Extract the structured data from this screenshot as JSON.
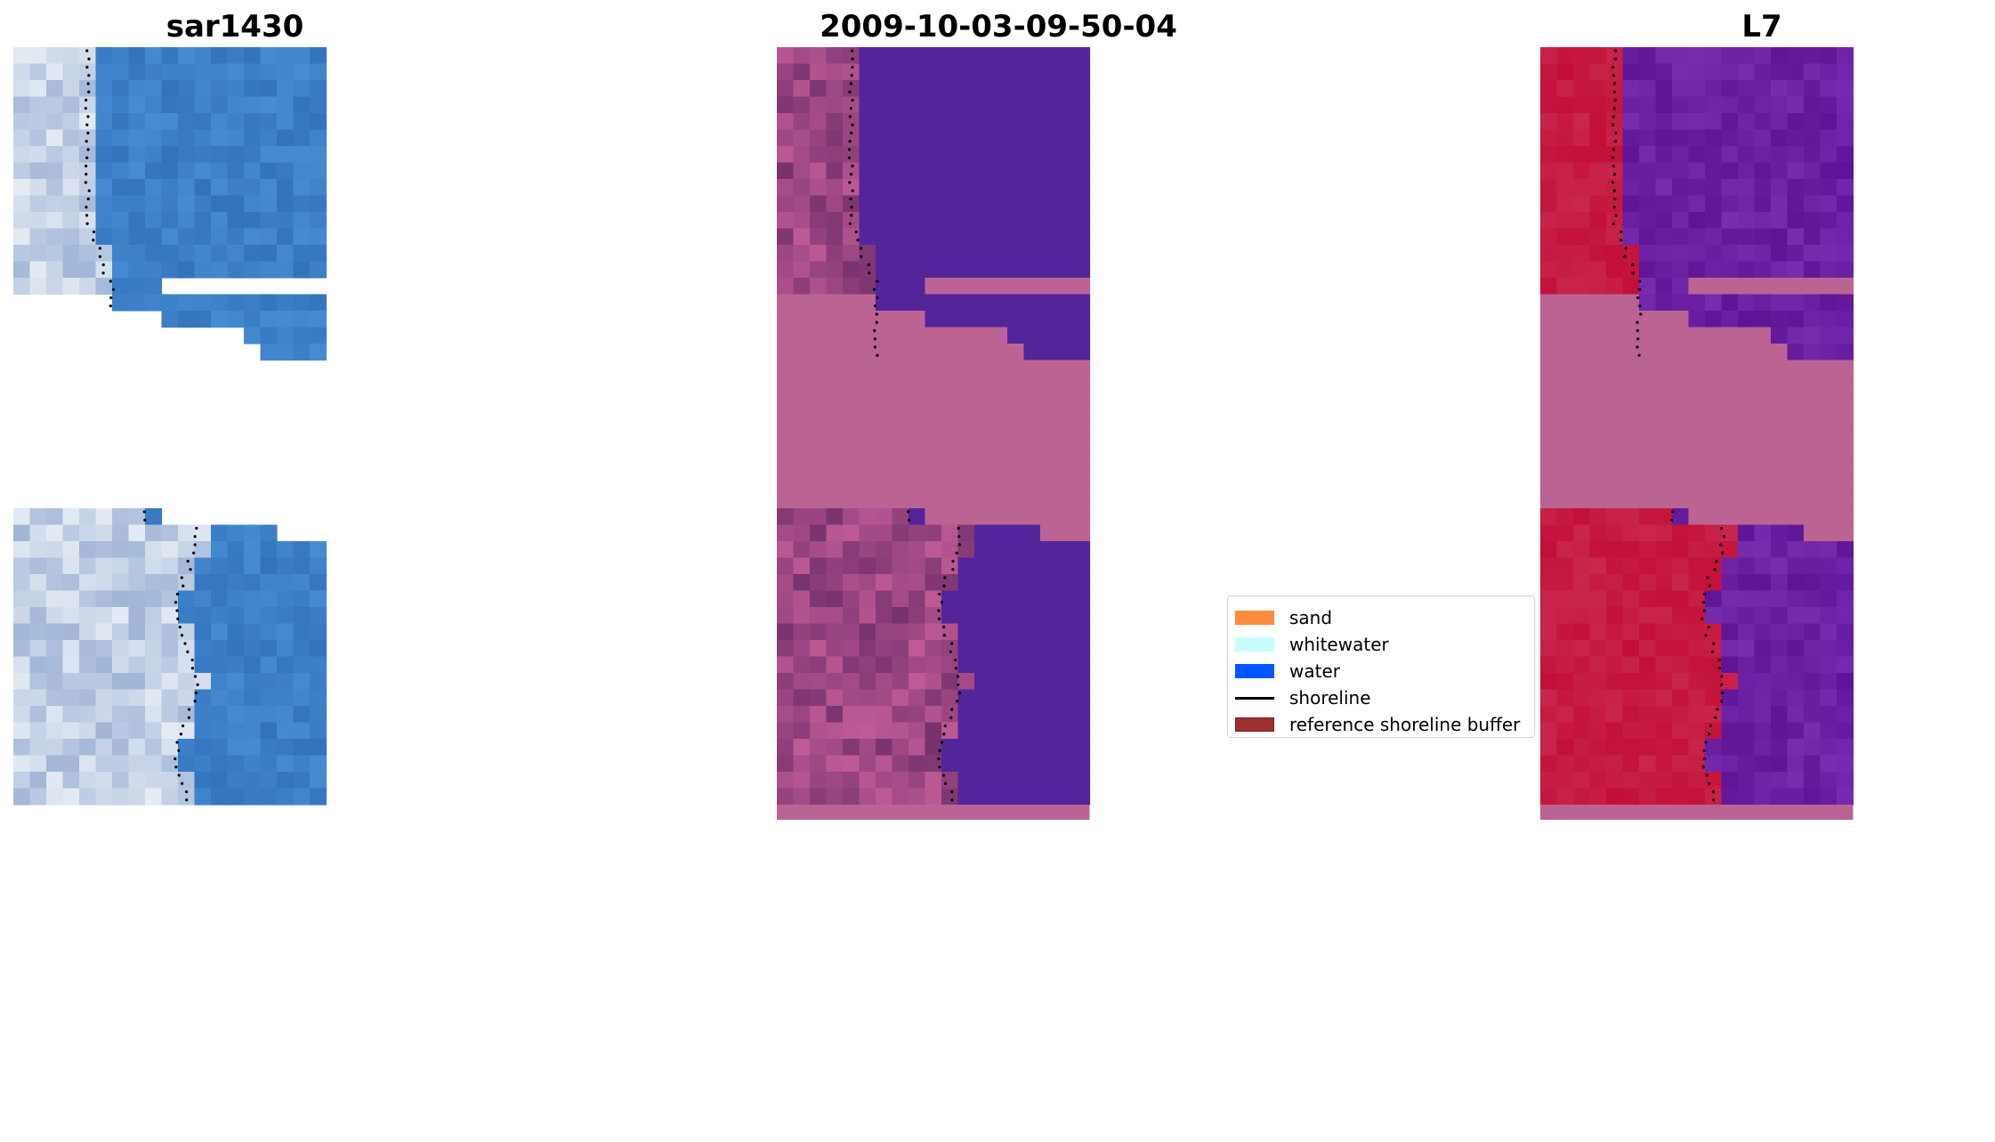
{
  "panels": [
    {
      "title": "sar1430",
      "style": "rgb"
    },
    {
      "title": "2009-10-03-09-50-04",
      "style": "classified"
    },
    {
      "title": "L7",
      "style": "index"
    }
  ],
  "legend": {
    "items": [
      {
        "label": "sand",
        "kind": "patch",
        "color": "#ff8c3b",
        "edge": "#ff8c3b"
      },
      {
        "label": "whitewater",
        "kind": "patch",
        "color": "#c8fdfd",
        "edge": "#c8fdfd"
      },
      {
        "label": "water",
        "kind": "patch",
        "color": "#0057ff",
        "edge": "#0057ff"
      },
      {
        "label": "shoreline",
        "kind": "line",
        "color": "#000000"
      },
      {
        "label": "reference shoreline buffer",
        "kind": "patch",
        "color": "#a03030",
        "edge": "#6b1f1f"
      }
    ]
  },
  "colors": {
    "nodata_pink": "#bb6494",
    "classified_water": "#54249a",
    "rgb_water": "#3a7cc4",
    "index_land": "#c5103e",
    "index_water": "#6a1ea0",
    "shoreline_dots": "#000000"
  }
}
